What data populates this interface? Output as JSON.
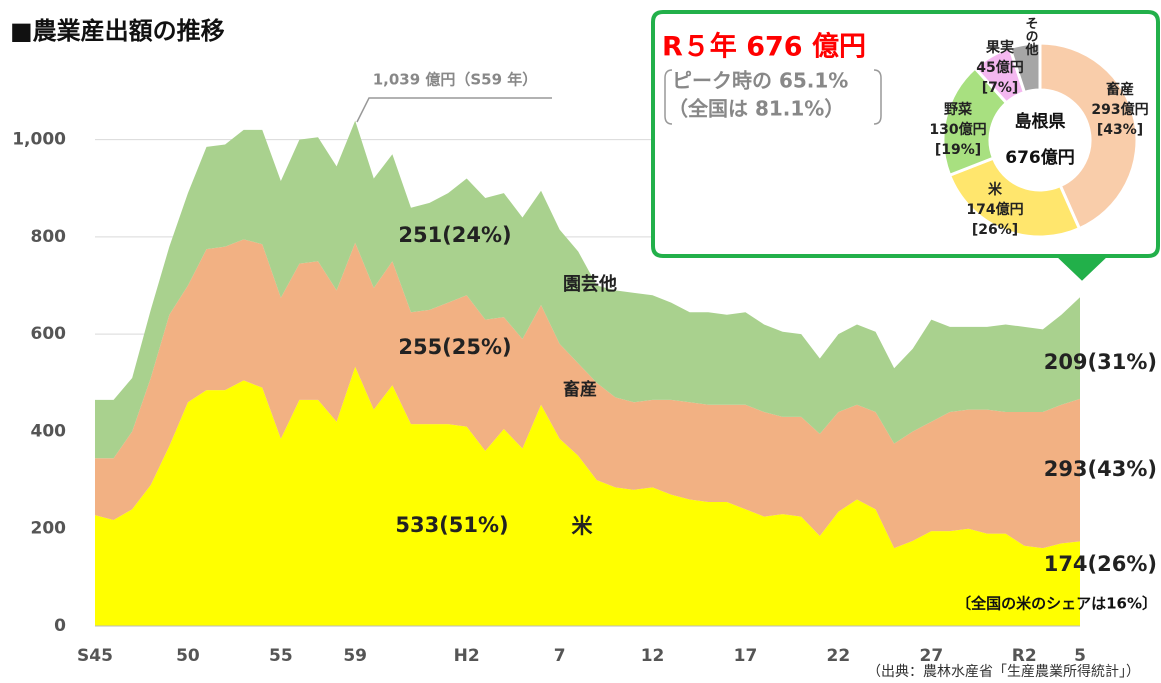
{
  "chart_data": [
    {
      "type": "stacked_area",
      "title": "■農業産出額の推移",
      "categories": [
        "S45",
        null,
        null,
        null,
        null,
        "50",
        null,
        null,
        null,
        null,
        "55",
        null,
        null,
        null,
        "59",
        null,
        null,
        null,
        null,
        null,
        "H2",
        null,
        null,
        null,
        null,
        "7",
        null,
        null,
        null,
        null,
        "12",
        null,
        null,
        null,
        null,
        "17",
        null,
        null,
        null,
        null,
        "22",
        null,
        null,
        null,
        null,
        "27",
        null,
        null,
        null,
        null,
        "R2",
        null,
        null,
        "5"
      ],
      "series": [
        {
          "name": "米",
          "color": "#ffff00",
          "values": [
            228,
            218,
            240,
            290,
            370,
            460,
            485,
            485,
            505,
            490,
            385,
            465,
            465,
            420,
            533,
            445,
            495,
            415,
            415,
            415,
            410,
            360,
            405,
            365,
            455,
            385,
            350,
            300,
            285,
            280,
            285,
            270,
            260,
            255,
            255,
            240,
            225,
            230,
            225,
            185,
            235,
            260,
            240,
            160,
            175,
            195,
            195,
            200,
            190,
            190,
            165,
            160,
            170,
            174
          ]
        },
        {
          "name": "畜産",
          "color": "#f2b183",
          "values": [
            117,
            127,
            160,
            220,
            270,
            240,
            290,
            295,
            290,
            295,
            290,
            280,
            285,
            270,
            255,
            250,
            255,
            230,
            235,
            250,
            270,
            270,
            230,
            225,
            205,
            195,
            190,
            200,
            185,
            180,
            180,
            195,
            200,
            200,
            200,
            215,
            215,
            200,
            205,
            210,
            205,
            195,
            200,
            215,
            225,
            225,
            245,
            245,
            255,
            250,
            275,
            280,
            285,
            293
          ]
        },
        {
          "name": "園芸他",
          "color": "#a9d18e",
          "values": [
            120,
            120,
            110,
            140,
            140,
            190,
            210,
            210,
            225,
            235,
            240,
            255,
            255,
            255,
            251,
            225,
            220,
            215,
            220,
            225,
            240,
            250,
            255,
            250,
            235,
            235,
            230,
            200,
            220,
            225,
            215,
            200,
            185,
            190,
            185,
            190,
            180,
            175,
            170,
            155,
            160,
            165,
            165,
            155,
            170,
            210,
            175,
            170,
            170,
            180,
            175,
            170,
            185,
            209
          ]
        }
      ],
      "ylim": [
        0,
        1100
      ],
      "yticks": [
        0,
        200,
        400,
        600,
        800,
        {
          "value": 1000,
          "label": "1,000"
        }
      ],
      "grid": true,
      "annotations": {
        "peak": "1,039 億円（S59 年）",
        "peak_horticulture": "251(24%)",
        "peak_livestock": "255(25%)",
        "peak_rice": "533(51%)",
        "latest_horticulture": "209(31%)",
        "latest_livestock": "293(43%)",
        "latest_rice": "174(26%)",
        "national_rice_share": "〔全国の米のシェアは16%〕",
        "source": "（出典：農林水産省「生産農業所得統計」）"
      }
    },
    {
      "type": "donut",
      "headline": "R５年 676 億円",
      "note1": "ピーク時の 65.1%",
      "note2": "（全国は 81.1%）",
      "center_title": "島根県",
      "center_value": "676億円",
      "categories": [
        "畜産",
        "米",
        "野菜",
        "果実",
        "その他"
      ],
      "values": [
        293,
        174,
        130,
        45,
        34
      ],
      "value_labels": [
        "293億円",
        "174億円",
        "130億円",
        "45億円",
        null
      ],
      "share_labels": [
        "[43%]",
        "[26%]",
        "[19%]",
        "[7%]",
        null
      ],
      "colors": [
        "#f9cdaa",
        "#ffe66d",
        "#a8e080",
        "#f4b8f0",
        "#a6a6a6"
      ]
    }
  ]
}
